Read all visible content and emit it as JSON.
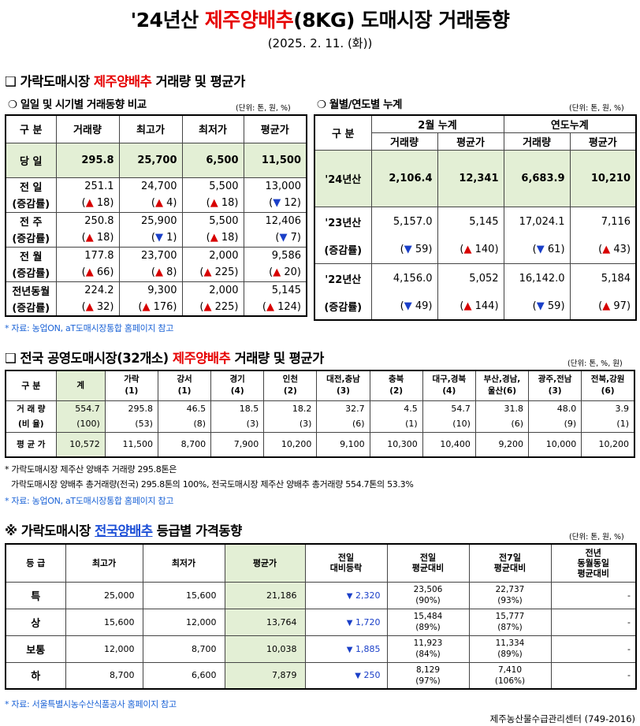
{
  "header": {
    "title_pre": "'24년산 ",
    "title_red": "제주양배추",
    "title_post": "(8KG) 도매시장 거래동향",
    "date": "(2025. 2. 11. (화))"
  },
  "section1": {
    "mark": "❑",
    "title_pre": "가락도매시장 ",
    "title_red": "제주양배추",
    "title_post": " 거래량 및 평균가",
    "left": {
      "sub_mark": "❍",
      "sub_title": "일일 및 시기별 거래동향 비교",
      "unit": "(단위: 톤, 원, %)",
      "headers": [
        "구 분",
        "거래량",
        "최고가",
        "최저가",
        "평균가"
      ],
      "today": {
        "label": "당 일",
        "values": [
          "295.8",
          "25,700",
          "6,500",
          "11,500"
        ]
      },
      "rows": [
        {
          "label": "전 일",
          "change_label": "(증감률)",
          "values": [
            "251.1",
            "24,700",
            "5,500",
            "13,000"
          ],
          "changes": [
            {
              "dir": "up",
              "sym": "▲",
              "v": "18"
            },
            {
              "dir": "up",
              "sym": "▲",
              "v": "4"
            },
            {
              "dir": "up",
              "sym": "▲",
              "v": "18"
            },
            {
              "dir": "down",
              "sym": "▼",
              "v": "12"
            }
          ]
        },
        {
          "label": "전 주",
          "change_label": "(증감률)",
          "values": [
            "250.8",
            "25,900",
            "5,500",
            "12,406"
          ],
          "changes": [
            {
              "dir": "up",
              "sym": "▲",
              "v": "18"
            },
            {
              "dir": "down",
              "sym": "▼",
              "v": "1"
            },
            {
              "dir": "up",
              "sym": "▲",
              "v": "18"
            },
            {
              "dir": "down",
              "sym": "▼",
              "v": "7"
            }
          ]
        },
        {
          "label": "전 월",
          "change_label": "(증감률)",
          "values": [
            "177.8",
            "23,700",
            "2,000",
            "9,586"
          ],
          "changes": [
            {
              "dir": "up",
              "sym": "▲",
              "v": "66"
            },
            {
              "dir": "up",
              "sym": "▲",
              "v": "8"
            },
            {
              "dir": "up",
              "sym": "▲",
              "v": "225"
            },
            {
              "dir": "up",
              "sym": "▲",
              "v": "20"
            }
          ]
        },
        {
          "label": "전년동월",
          "change_label": "(증감률)",
          "values": [
            "224.2",
            "9,300",
            "2,000",
            "5,145"
          ],
          "changes": [
            {
              "dir": "up",
              "sym": "▲",
              "v": "32"
            },
            {
              "dir": "up",
              "sym": "▲",
              "v": "176"
            },
            {
              "dir": "up",
              "sym": "▲",
              "v": "225"
            },
            {
              "dir": "up",
              "sym": "▲",
              "v": "124"
            }
          ]
        }
      ]
    },
    "right": {
      "sub_mark": "❍",
      "sub_title": "월별/연도별 누계",
      "unit": "(단위: 톤, 원, %)",
      "header_gubun": "구 분",
      "group1": "2월 누계",
      "group2": "연도누계",
      "sub_headers": [
        "거래량",
        "평균가",
        "거래량",
        "평균가"
      ],
      "current": {
        "label": "'24년산",
        "values": [
          "2,106.4",
          "12,341",
          "6,683.9",
          "10,210"
        ]
      },
      "rows": [
        {
          "label": "'23년산",
          "change_label": "(증감률)",
          "values": [
            "5,157.0",
            "5,145",
            "17,024.1",
            "7,116"
          ],
          "changes": [
            {
              "dir": "down",
              "sym": "▼",
              "v": "59"
            },
            {
              "dir": "up",
              "sym": "▲",
              "v": "140"
            },
            {
              "dir": "down",
              "sym": "▼",
              "v": "61"
            },
            {
              "dir": "up",
              "sym": "▲",
              "v": "43"
            }
          ]
        },
        {
          "label": "'22년산",
          "change_label": "(증감률)",
          "values": [
            "4,156.0",
            "5,052",
            "16,142.0",
            "5,184"
          ],
          "changes": [
            {
              "dir": "down",
              "sym": "▼",
              "v": "49"
            },
            {
              "dir": "up",
              "sym": "▲",
              "v": "144"
            },
            {
              "dir": "down",
              "sym": "▼",
              "v": "59"
            },
            {
              "dir": "up",
              "sym": "▲",
              "v": "97"
            }
          ]
        }
      ]
    },
    "note": "* 자료: 농업ON, aT도매시장통합 홈페이지 참고"
  },
  "section2": {
    "mark": "❑",
    "title_pre": "전국 공영도매시장(32개소) ",
    "title_red": "제주양배추",
    "title_post": " 거래량 및 평균가",
    "unit": "(단위: 톤, %, 원)",
    "header_gubun": "구 분",
    "columns": [
      {
        "name": "계",
        "sub": ""
      },
      {
        "name": "가락",
        "sub": "(1)"
      },
      {
        "name": "강서",
        "sub": "(1)"
      },
      {
        "name": "경기",
        "sub": "(4)"
      },
      {
        "name": "인천",
        "sub": "(2)"
      },
      {
        "name": "대전,충남",
        "sub": "(3)"
      },
      {
        "name": "충북",
        "sub": "(2)"
      },
      {
        "name": "대구,경북",
        "sub": "(4)"
      },
      {
        "name": "부산,경남,",
        "sub": "울산(6)"
      },
      {
        "name": "광주,전남",
        "sub": "(3)"
      },
      {
        "name": "전북,강원",
        "sub": "(6)"
      }
    ],
    "volume_label": "거 래 량",
    "ratio_label": "(비 율)",
    "price_label": "평 균 가",
    "volumes": [
      "554.7",
      "295.8",
      "46.5",
      "18.5",
      "18.2",
      "32.7",
      "4.5",
      "54.7",
      "31.8",
      "48.0",
      "3.9"
    ],
    "ratios": [
      "(100)",
      "(53)",
      "(8)",
      "(3)",
      "(3)",
      "(6)",
      "(1)",
      "(10)",
      "(6)",
      "(9)",
      "(1)"
    ],
    "prices": [
      "10,572",
      "11,500",
      "8,700",
      "7,900",
      "10,200",
      "9,100",
      "10,300",
      "10,400",
      "9,200",
      "10,000",
      "10,200"
    ],
    "note1": "* 가락도매시장 제주산 양배추 거래량 295.8톤은",
    "note2": "가락도매시장 양배추 총거래량(전국) 295.8톤의 100%, 전국도매시장 제주산 양배추 총거래량 554.7톤의 53.3%",
    "note3": "* 자료: 농업ON, aT도매시장통합 홈페이지 참고"
  },
  "section3": {
    "mark": "※",
    "title_pre": "가락도매시장 ",
    "title_blue": "전국양배추",
    "title_post": " 등급별 가격동향",
    "unit": "(단위: 톤, 원, %)",
    "headers": [
      "등 급",
      "최고가",
      "최저가",
      "평균가",
      "전일\n대비등락",
      "전일\n평균대비",
      "전7일\n평균대비",
      "전년\n동월동일\n평균대비"
    ],
    "rows": [
      {
        "grade": "특",
        "max": "25,000",
        "min": "15,600",
        "avg": "21,186",
        "diff_sym": "▼",
        "diff": "2,320",
        "prev_day": "23,506",
        "prev_day_pct": "(90%)",
        "prev7": "22,737",
        "prev7_pct": "(93%)",
        "prev_year": "-"
      },
      {
        "grade": "상",
        "max": "15,600",
        "min": "12,000",
        "avg": "13,764",
        "diff_sym": "▼",
        "diff": "1,720",
        "prev_day": "15,484",
        "prev_day_pct": "(89%)",
        "prev7": "15,777",
        "prev7_pct": "(87%)",
        "prev_year": "-"
      },
      {
        "grade": "보통",
        "max": "12,000",
        "min": "8,700",
        "avg": "10,038",
        "diff_sym": "▼",
        "diff": "1,885",
        "prev_day": "11,923",
        "prev_day_pct": "(84%)",
        "prev7": "11,334",
        "prev7_pct": "(89%)",
        "prev_year": "-"
      },
      {
        "grade": "하",
        "max": "8,700",
        "min": "6,600",
        "avg": "7,879",
        "diff_sym": "▼",
        "diff": "250",
        "prev_day": "8,129",
        "prev_day_pct": "(97%)",
        "prev7": "7,410",
        "prev7_pct": "(106%)",
        "prev_year": "-"
      }
    ],
    "note": "* 자료: 서울특별시농수산식품공사 홈페이지 참고"
  },
  "footer": "제주농산물수급관리센터 (749-2016)"
}
